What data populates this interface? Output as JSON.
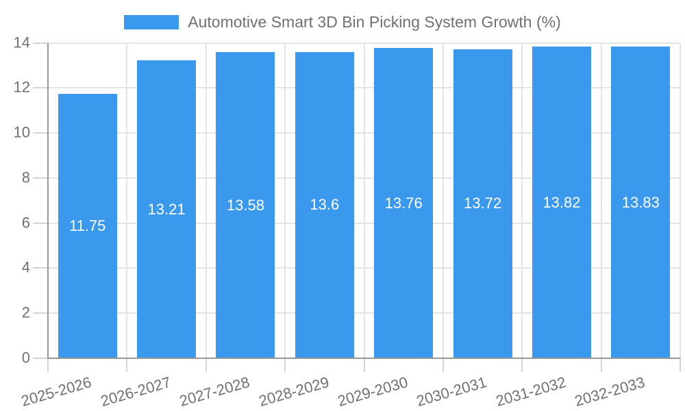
{
  "chart_data": {
    "type": "bar",
    "title": "Automotive Smart 3D Bin Picking System Growth (%)",
    "categories": [
      "2025-2026",
      "2026-2027",
      "2027-2028",
      "2028-2029",
      "2029-2030",
      "2030-2031",
      "2031-2032",
      "2032-2033"
    ],
    "values": [
      11.75,
      13.21,
      13.58,
      13.6,
      13.76,
      13.72,
      13.82,
      13.83
    ],
    "value_labels": [
      "11.75",
      "13.21",
      "13.58",
      "13.6",
      "13.76",
      "13.72",
      "13.82",
      "13.83"
    ],
    "xlabel": "",
    "ylabel": "",
    "ylim": [
      0,
      14
    ],
    "yticks": [
      0,
      2,
      4,
      6,
      8,
      10,
      12,
      14
    ],
    "grid": "on",
    "legend_position": "top",
    "value_labels_position": "center-of-bar",
    "xtick_rotation_deg": -16
  },
  "colors": {
    "bar": "#3a99ec",
    "axis": "#999999",
    "grid": "#e4e4e4",
    "tick": "#d4d4d4",
    "text": "#707070",
    "value_label": "#ffffff",
    "background": "#ffffff"
  }
}
